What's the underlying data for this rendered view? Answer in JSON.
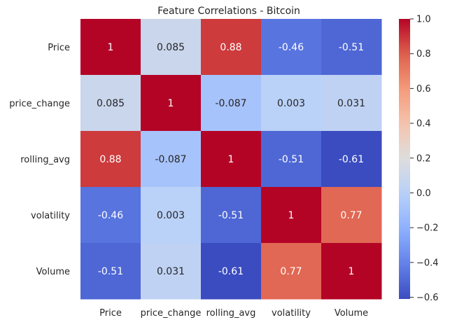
{
  "chart_data": {
    "type": "heatmap",
    "title": "Feature Correlations - Bitcoin",
    "row_labels": [
      "Price",
      "price_change",
      "rolling_avg",
      "volatility",
      "Volume"
    ],
    "col_labels": [
      "Price",
      "price_change",
      "rolling_avg",
      "volatility",
      "Volume"
    ],
    "values": [
      [
        1,
        0.085,
        0.88,
        -0.46,
        -0.51
      ],
      [
        0.085,
        1,
        -0.087,
        0.003,
        0.031
      ],
      [
        0.88,
        -0.087,
        1,
        -0.51,
        -0.61
      ],
      [
        -0.46,
        0.003,
        -0.51,
        1,
        0.77
      ],
      [
        -0.51,
        0.031,
        -0.61,
        0.77,
        1
      ]
    ],
    "cell_labels": [
      [
        "1",
        "0.085",
        "0.88",
        "-0.46",
        "-0.51"
      ],
      [
        "0.085",
        "1",
        "-0.087",
        "0.003",
        "0.031"
      ],
      [
        "0.88",
        "-0.087",
        "1",
        "-0.51",
        "-0.61"
      ],
      [
        "-0.46",
        "0.003",
        "-0.51",
        "1",
        "0.77"
      ],
      [
        "-0.51",
        "0.031",
        "-0.61",
        "0.77",
        "1"
      ]
    ],
    "colormap": "coolwarm",
    "vmin": -0.61,
    "vmax": 1.0,
    "colorbar_ticks": [
      1.0,
      0.8,
      0.6,
      0.4,
      0.2,
      0.0,
      -0.2,
      -0.4,
      -0.6
    ],
    "colorbar_tick_labels": [
      "1.0",
      "0.8",
      "0.6",
      "0.4",
      "0.2",
      "0.0",
      "−0.2",
      "−0.4",
      "−0.6"
    ],
    "grid": false
  }
}
